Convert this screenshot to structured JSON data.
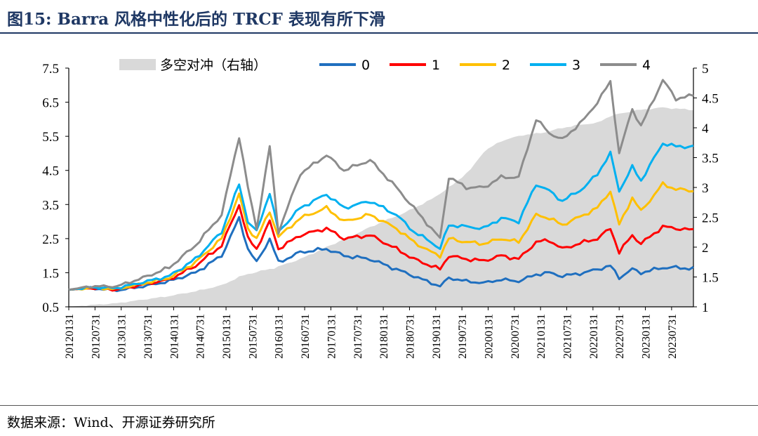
{
  "header": {
    "title": "图15:  Barra 风格中性化后的 TRCF 表现有所下滑"
  },
  "footer": {
    "source": "数据来源：Wind、开源证券研究所"
  },
  "chart_data": {
    "type": "line",
    "x_tick_labels": [
      "20120131",
      "20120731",
      "20130131",
      "20130731",
      "20140131",
      "20140731",
      "20150131",
      "20150731",
      "20160131",
      "20160731",
      "20170131",
      "20170731",
      "20180131",
      "20180731",
      "20190131",
      "20190731",
      "20200131",
      "20200731",
      "20210131",
      "20210731",
      "20220131",
      "20220731",
      "20230131",
      "20230731"
    ],
    "y_left_ticks": [
      "7.5",
      "6.5",
      "5.5",
      "4.5",
      "3.5",
      "2.5",
      "1.5",
      "0.5"
    ],
    "y_right_ticks": [
      "5",
      "4.5",
      "4",
      "3.5",
      "3",
      "2.5",
      "2",
      "1.5",
      "1"
    ],
    "ylim_left": [
      0.5,
      7.5
    ],
    "ylim_right": [
      1,
      5
    ],
    "legend": {
      "placement": "top"
    },
    "area_series": {
      "name": "多空对冲（右轴）",
      "axis": "right",
      "color": "#d9d9d9",
      "anchors": [
        [
          0,
          1.0
        ],
        [
          5,
          1.03
        ],
        [
          11,
          1.06
        ],
        [
          17,
          1.12
        ],
        [
          23,
          1.18
        ],
        [
          29,
          1.26
        ],
        [
          35,
          1.36
        ],
        [
          39,
          1.5
        ],
        [
          41,
          1.55
        ],
        [
          47,
          1.65
        ],
        [
          53,
          1.8
        ],
        [
          59,
          2.0
        ],
        [
          65,
          2.2
        ],
        [
          71,
          2.4
        ],
        [
          77,
          2.58
        ],
        [
          83,
          2.8
        ],
        [
          86,
          2.95
        ],
        [
          88,
          3.05
        ],
        [
          92,
          3.3
        ],
        [
          95,
          3.6
        ],
        [
          99,
          3.78
        ],
        [
          104,
          3.88
        ],
        [
          107,
          3.9
        ],
        [
          110,
          3.94
        ],
        [
          113,
          4.0
        ],
        [
          118,
          4.06
        ],
        [
          121,
          4.08
        ],
        [
          124,
          4.2
        ],
        [
          129,
          4.28
        ],
        [
          131,
          4.3
        ],
        [
          136,
          4.34
        ],
        [
          139,
          4.32
        ],
        [
          143,
          4.3
        ]
      ]
    },
    "series": [
      {
        "name": "0",
        "color": "#1f6fbf",
        "anchors": [
          [
            0,
            1.0
          ],
          [
            5,
            1.05
          ],
          [
            11,
            0.98
          ],
          [
            17,
            1.1
          ],
          [
            23,
            1.25
          ],
          [
            29,
            1.5
          ],
          [
            35,
            2.0
          ],
          [
            39,
            3.1
          ],
          [
            41,
            2.2
          ],
          [
            43,
            1.8
          ],
          [
            46,
            2.5
          ],
          [
            48,
            1.8
          ],
          [
            53,
            2.1
          ],
          [
            59,
            2.2
          ],
          [
            63,
            2.0
          ],
          [
            69,
            1.9
          ],
          [
            75,
            1.6
          ],
          [
            79,
            1.4
          ],
          [
            83,
            1.2
          ],
          [
            85,
            1.1
          ],
          [
            87,
            1.35
          ],
          [
            91,
            1.25
          ],
          [
            95,
            1.2
          ],
          [
            99,
            1.3
          ],
          [
            103,
            1.25
          ],
          [
            107,
            1.45
          ],
          [
            110,
            1.5
          ],
          [
            113,
            1.4
          ],
          [
            118,
            1.5
          ],
          [
            121,
            1.6
          ],
          [
            124,
            1.7
          ],
          [
            126,
            1.35
          ],
          [
            129,
            1.6
          ],
          [
            131,
            1.5
          ],
          [
            136,
            1.65
          ],
          [
            139,
            1.65
          ],
          [
            143,
            1.62
          ]
        ]
      },
      {
        "name": "1",
        "color": "#ff0000",
        "anchors": [
          [
            0,
            1.0
          ],
          [
            5,
            1.05
          ],
          [
            11,
            1.0
          ],
          [
            17,
            1.15
          ],
          [
            23,
            1.3
          ],
          [
            29,
            1.7
          ],
          [
            35,
            2.3
          ],
          [
            39,
            3.5
          ],
          [
            41,
            2.5
          ],
          [
            43,
            2.2
          ],
          [
            46,
            3.0
          ],
          [
            48,
            2.2
          ],
          [
            53,
            2.6
          ],
          [
            59,
            2.8
          ],
          [
            63,
            2.5
          ],
          [
            69,
            2.6
          ],
          [
            75,
            2.2
          ],
          [
            79,
            1.9
          ],
          [
            83,
            1.7
          ],
          [
            85,
            1.6
          ],
          [
            87,
            2.0
          ],
          [
            91,
            1.9
          ],
          [
            95,
            1.85
          ],
          [
            99,
            2.0
          ],
          [
            103,
            1.9
          ],
          [
            107,
            2.4
          ],
          [
            110,
            2.45
          ],
          [
            113,
            2.2
          ],
          [
            118,
            2.4
          ],
          [
            121,
            2.5
          ],
          [
            124,
            2.8
          ],
          [
            126,
            2.1
          ],
          [
            129,
            2.6
          ],
          [
            131,
            2.35
          ],
          [
            136,
            2.85
          ],
          [
            139,
            2.8
          ],
          [
            143,
            2.75
          ]
        ]
      },
      {
        "name": "2",
        "color": "#ffc000",
        "anchors": [
          [
            0,
            1.0
          ],
          [
            5,
            1.06
          ],
          [
            11,
            1.02
          ],
          [
            17,
            1.18
          ],
          [
            23,
            1.35
          ],
          [
            29,
            1.8
          ],
          [
            35,
            2.5
          ],
          [
            39,
            3.8
          ],
          [
            41,
            2.8
          ],
          [
            43,
            2.5
          ],
          [
            46,
            3.3
          ],
          [
            48,
            2.55
          ],
          [
            53,
            3.1
          ],
          [
            59,
            3.4
          ],
          [
            63,
            3.0
          ],
          [
            69,
            3.2
          ],
          [
            75,
            2.8
          ],
          [
            79,
            2.4
          ],
          [
            83,
            2.1
          ],
          [
            85,
            2.0
          ],
          [
            87,
            2.5
          ],
          [
            91,
            2.4
          ],
          [
            95,
            2.35
          ],
          [
            99,
            2.5
          ],
          [
            103,
            2.4
          ],
          [
            107,
            3.2
          ],
          [
            110,
            3.1
          ],
          [
            113,
            2.9
          ],
          [
            118,
            3.2
          ],
          [
            121,
            3.4
          ],
          [
            124,
            3.9
          ],
          [
            126,
            2.9
          ],
          [
            129,
            3.7
          ],
          [
            131,
            3.3
          ],
          [
            136,
            4.1
          ],
          [
            139,
            3.95
          ],
          [
            143,
            3.9
          ]
        ]
      },
      {
        "name": "3",
        "color": "#00b0f0",
        "anchors": [
          [
            0,
            1.0
          ],
          [
            5,
            1.07
          ],
          [
            11,
            1.05
          ],
          [
            17,
            1.22
          ],
          [
            23,
            1.4
          ],
          [
            29,
            1.9
          ],
          [
            35,
            2.7
          ],
          [
            39,
            4.1
          ],
          [
            41,
            3.0
          ],
          [
            43,
            2.7
          ],
          [
            46,
            3.85
          ],
          [
            48,
            2.7
          ],
          [
            53,
            3.4
          ],
          [
            59,
            3.8
          ],
          [
            63,
            3.4
          ],
          [
            69,
            3.6
          ],
          [
            75,
            3.2
          ],
          [
            79,
            2.7
          ],
          [
            83,
            2.4
          ],
          [
            85,
            2.2
          ],
          [
            87,
            2.9
          ],
          [
            91,
            2.85
          ],
          [
            95,
            2.8
          ],
          [
            99,
            3.1
          ],
          [
            103,
            3.0
          ],
          [
            107,
            4.1
          ],
          [
            110,
            3.9
          ],
          [
            113,
            3.6
          ],
          [
            118,
            4.0
          ],
          [
            121,
            4.4
          ],
          [
            124,
            5.0
          ],
          [
            126,
            3.9
          ],
          [
            129,
            4.6
          ],
          [
            131,
            4.2
          ],
          [
            136,
            5.3
          ],
          [
            139,
            5.2
          ],
          [
            143,
            5.2
          ]
        ]
      },
      {
        "name": "4",
        "color": "#8c8c8c",
        "anchors": [
          [
            0,
            1.0
          ],
          [
            5,
            1.1
          ],
          [
            11,
            1.1
          ],
          [
            17,
            1.35
          ],
          [
            23,
            1.65
          ],
          [
            29,
            2.3
          ],
          [
            35,
            3.2
          ],
          [
            39,
            5.5
          ],
          [
            41,
            4.0
          ],
          [
            43,
            2.8
          ],
          [
            46,
            5.2
          ],
          [
            48,
            2.7
          ],
          [
            53,
            4.4
          ],
          [
            59,
            4.95
          ],
          [
            63,
            4.5
          ],
          [
            69,
            4.8
          ],
          [
            75,
            4.0
          ],
          [
            79,
            3.4
          ],
          [
            83,
            2.8
          ],
          [
            85,
            2.5
          ],
          [
            87,
            4.3
          ],
          [
            91,
            4.0
          ],
          [
            95,
            4.0
          ],
          [
            99,
            4.3
          ],
          [
            103,
            4.3
          ],
          [
            107,
            6.0
          ],
          [
            110,
            5.6
          ],
          [
            113,
            5.4
          ],
          [
            118,
            6.0
          ],
          [
            121,
            6.5
          ],
          [
            124,
            7.1
          ],
          [
            126,
            5.0
          ],
          [
            129,
            6.3
          ],
          [
            131,
            5.8
          ],
          [
            136,
            7.15
          ],
          [
            139,
            6.6
          ],
          [
            143,
            6.7
          ]
        ]
      }
    ]
  }
}
